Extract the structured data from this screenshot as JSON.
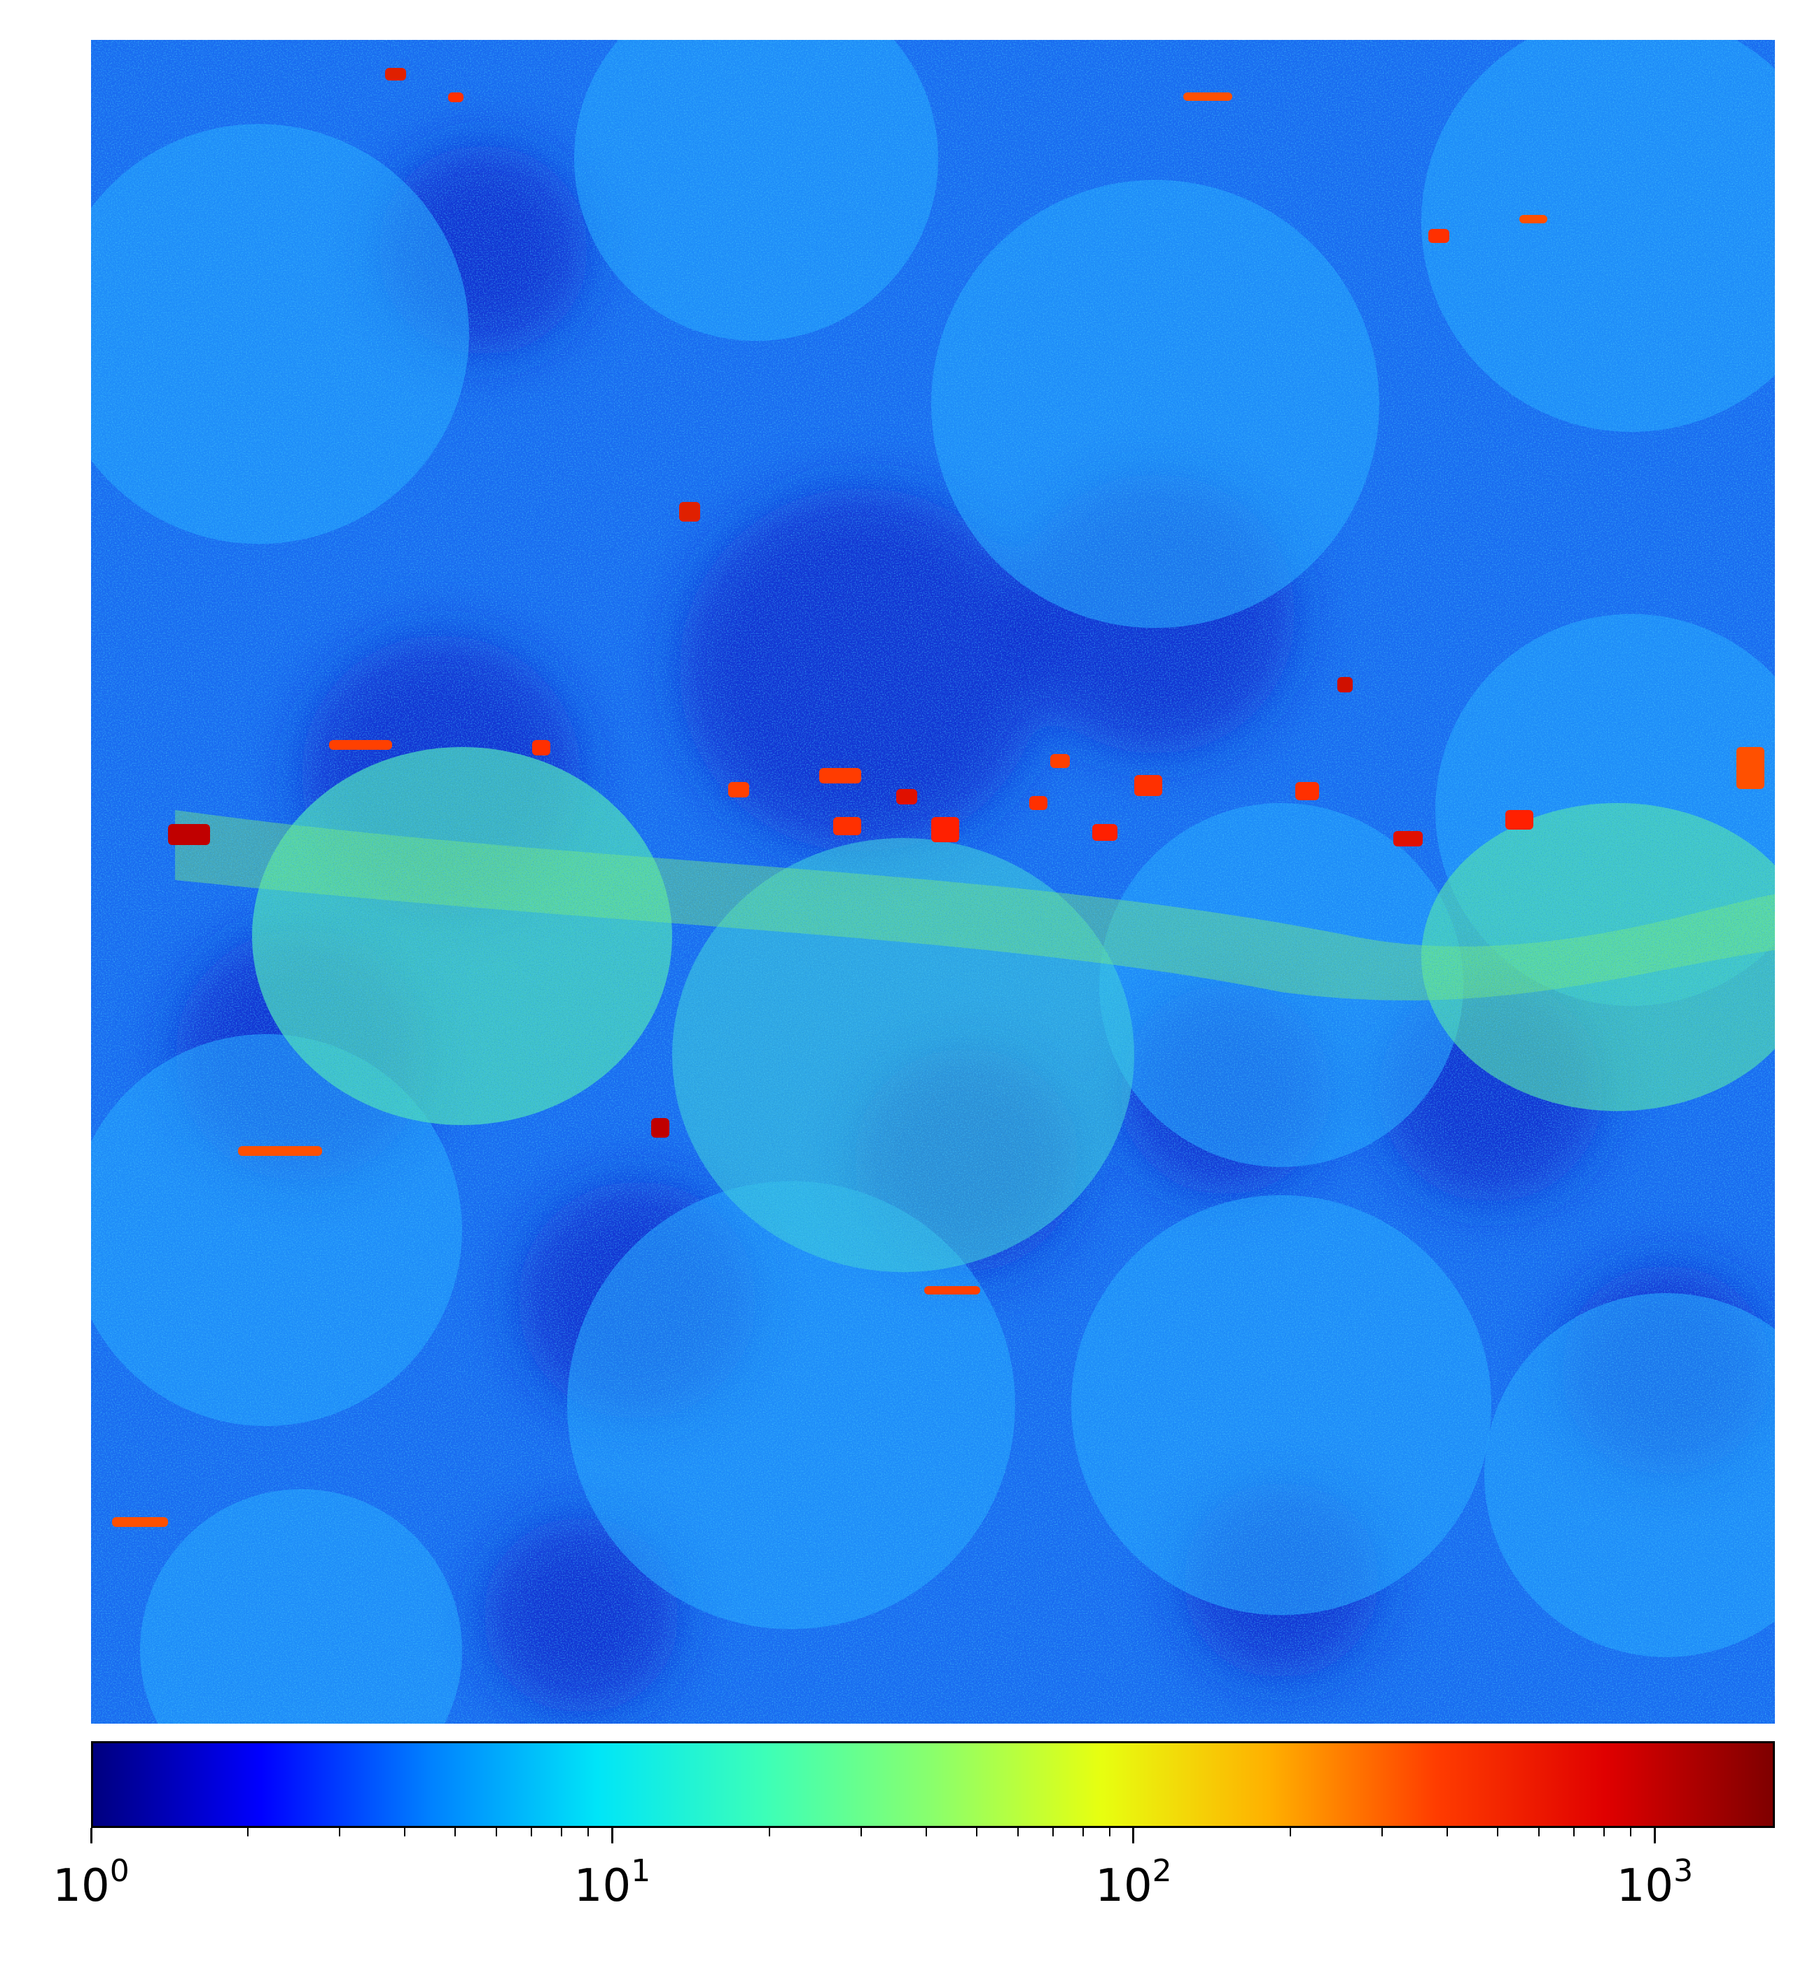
{
  "heatmap": {
    "colormap": "jet",
    "scale": "log"
  },
  "colorbar": {
    "orientation": "horizontal",
    "min": 1,
    "max": 1700,
    "stops": [
      "#00007f",
      "#0000ff",
      "#0080ff",
      "#00e5f8",
      "#3cffb8",
      "#8aff6c",
      "#e7ff10",
      "#ffb000",
      "#ff3c00",
      "#e00000",
      "#7f0000"
    ],
    "ticks": [
      {
        "value": 1,
        "base": "10",
        "exp": "0"
      },
      {
        "value": 10,
        "base": "10",
        "exp": "1"
      },
      {
        "value": 100,
        "base": "10",
        "exp": "2"
      },
      {
        "value": 1000,
        "base": "10",
        "exp": "3"
      }
    ]
  }
}
